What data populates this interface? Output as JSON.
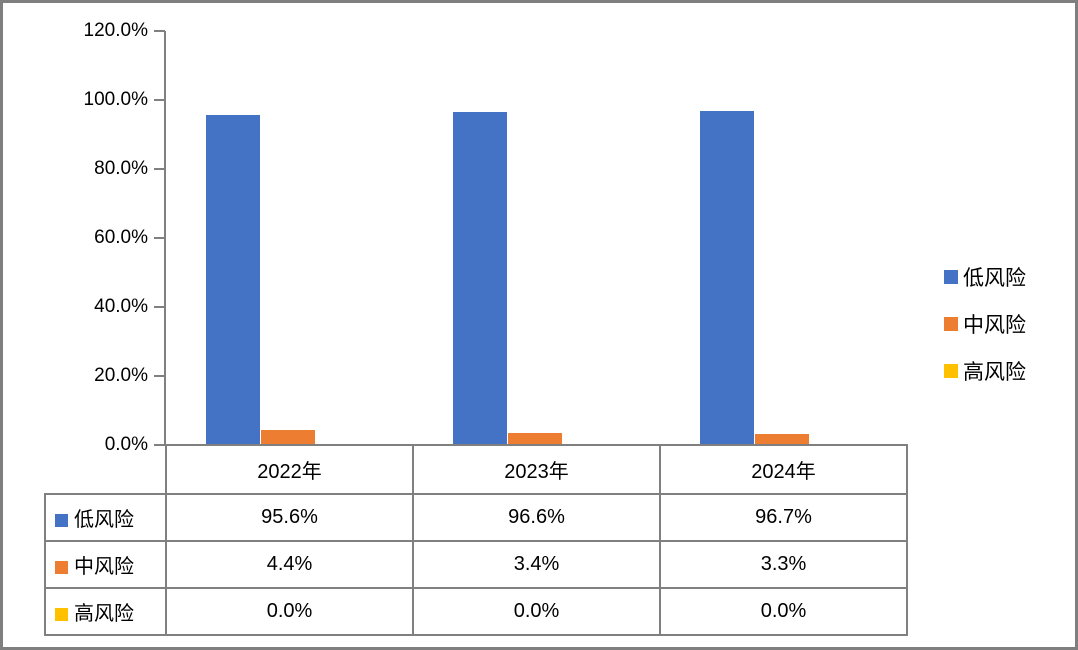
{
  "chart_data": {
    "type": "bar",
    "categories": [
      "2022年",
      "2023年",
      "2024年"
    ],
    "series": [
      {
        "name": "低风险",
        "color": "#4472C4",
        "values": [
          95.6,
          96.6,
          96.7
        ],
        "display_values": [
          "95.6%",
          "96.6%",
          "96.7%"
        ]
      },
      {
        "name": "中风险",
        "color": "#ED7D31",
        "values": [
          4.4,
          3.4,
          3.3
        ],
        "display_values": [
          "4.4%",
          "3.4%",
          "3.3%"
        ]
      },
      {
        "name": "高风险",
        "color": "#FFC000",
        "values": [
          0.0,
          0.0,
          0.0
        ],
        "display_values": [
          "0.0%",
          "0.0%",
          "0.0%"
        ]
      }
    ],
    "title": "",
    "xlabel": "",
    "ylabel": "",
    "ylim": [
      0,
      120
    ],
    "ytick_step": 20,
    "ytick_labels": [
      "120.0%",
      "100.0%",
      "80.0%",
      "60.0%",
      "40.0%",
      "20.0%",
      "0.0%"
    ],
    "grid": false,
    "legend_position": "right",
    "legend_entries": [
      "低风险",
      "中风险",
      "高风险"
    ],
    "data_table_shown": true
  },
  "colors": {
    "axis": "#808080",
    "table_border": "#808080",
    "frame_border": "#7F7F7F",
    "background": "#FFFFFF",
    "text": "#000000"
  }
}
